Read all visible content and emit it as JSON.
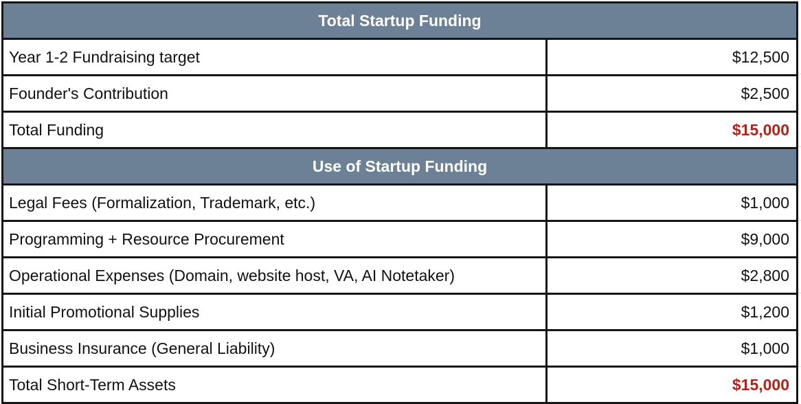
{
  "sections": [
    {
      "title": "Total Startup Funding",
      "rows": [
        {
          "label": "Year 1-2 Fundraising target",
          "value": "$12,500"
        },
        {
          "label": "Founder's Contribution",
          "value": "$2,500"
        },
        {
          "label": "Total Funding",
          "value": "$15,000"
        }
      ]
    },
    {
      "title": "Use of Startup Funding",
      "rows": [
        {
          "label": "Legal Fees (Formalization, Trademark, etc.)",
          "value": "$1,000"
        },
        {
          "label": "Programming + Resource Procurement",
          "value": "$9,000"
        },
        {
          "label": "Operational Expenses (Domain, website host, VA, AI Notetaker)",
          "value": "$2,800"
        },
        {
          "label": "Initial Promotional Supplies",
          "value": "$1,200"
        },
        {
          "label": "Business Insurance (General Liability)",
          "value": "$1,000"
        },
        {
          "label": "Total Short-Term Assets",
          "value": "$15,000"
        }
      ]
    }
  ],
  "colors": {
    "header_bg": "#6d8196",
    "total_text": "#b1231a"
  }
}
